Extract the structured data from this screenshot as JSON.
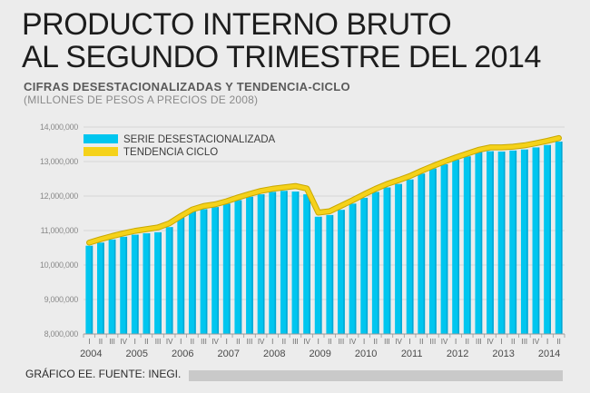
{
  "header": {
    "title_line1": "PRODUCTO INTERNO BRUTO",
    "title_line2": "AL SEGUNDO TRIMESTRE DEL 2014",
    "subtitle": "CIFRAS DESESTACIONALIZADAS Y TENDENCIA-CICLO",
    "units": "(MILLONES DE PESOS A PRECIOS DE 2008)"
  },
  "footer": {
    "source": "GRÁFICO EE. FUENTE: INEGI."
  },
  "colors": {
    "bar": "#00c6ef",
    "bar_edge": "#008fc0",
    "trend": "#f5d21a",
    "trend_edge": "#c8a800",
    "background": "#ececec"
  },
  "chart_data": {
    "type": "bar",
    "ylim": [
      8000000,
      14000000
    ],
    "yticks": [
      "8,000,000",
      "9,000,000",
      "10,000,000",
      "11,000,000",
      "12,000,000",
      "13,000,000",
      "14,000,000"
    ],
    "ytick_values": [
      8000000,
      9000000,
      10000000,
      11000000,
      12000000,
      13000000,
      14000000
    ],
    "quarter_labels": [
      "I",
      "II",
      "III",
      "IV",
      "I",
      "II",
      "III",
      "IV",
      "I",
      "II",
      "III",
      "IV",
      "I",
      "II",
      "III",
      "IV",
      "I",
      "II",
      "III",
      "IV",
      "I",
      "II",
      "III",
      "IV",
      "I",
      "II",
      "III",
      "IV",
      "I",
      "II",
      "III",
      "IV",
      "I",
      "II",
      "III",
      "IV",
      "I",
      "II",
      "III",
      "IV",
      "I",
      "II"
    ],
    "year_labels": [
      "2004",
      "2005",
      "2006",
      "2007",
      "2008",
      "2009",
      "2010",
      "2011",
      "2012",
      "2013",
      "2014"
    ],
    "legend": [
      {
        "name": "SERIE DESESTACIONALIZADA",
        "color": "#00c6ef"
      },
      {
        "name": "TENDENCIA CICLO",
        "color": "#f5d21a"
      }
    ],
    "series": [
      {
        "name": "SERIE DESESTACIONALIZADA",
        "kind": "bar",
        "values": [
          10560000,
          10650000,
          10740000,
          10820000,
          10880000,
          10920000,
          10950000,
          11100000,
          11380000,
          11560000,
          11620000,
          11680000,
          11780000,
          11880000,
          11980000,
          12050000,
          12120000,
          12150000,
          12130000,
          12050000,
          11400000,
          11450000,
          11600000,
          11780000,
          11950000,
          12120000,
          12250000,
          12350000,
          12480000,
          12650000,
          12800000,
          12920000,
          13050000,
          13150000,
          13280000,
          13300000,
          13290000,
          13320000,
          13350000,
          13410000,
          13480000,
          13580000
        ]
      },
      {
        "name": "TENDENCIA CICLO",
        "kind": "line",
        "values": [
          10650000,
          10750000,
          10840000,
          10920000,
          10990000,
          11040000,
          11090000,
          11210000,
          11420000,
          11610000,
          11710000,
          11760000,
          11850000,
          11960000,
          12060000,
          12150000,
          12210000,
          12250000,
          12290000,
          12220000,
          11520000,
          11560000,
          11720000,
          11880000,
          12050000,
          12210000,
          12350000,
          12460000,
          12580000,
          12730000,
          12870000,
          13000000,
          13120000,
          13230000,
          13340000,
          13410000,
          13410000,
          13430000,
          13470000,
          13530000,
          13600000,
          13680000
        ]
      }
    ]
  }
}
